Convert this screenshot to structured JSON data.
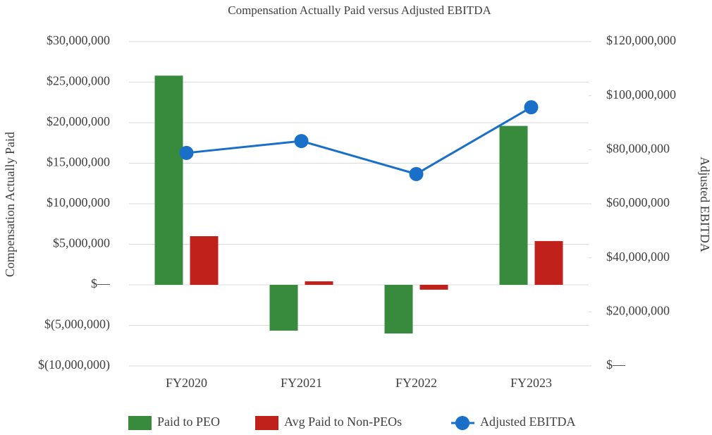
{
  "chart_data": {
    "type": "bar",
    "title": "Compensation Actually Paid versus Adjusted EBITDA",
    "ylabel": "Compensation Actually Paid",
    "y2label": "Adjusted EBITDA",
    "categories": [
      "FY2020",
      "FY2021",
      "FY2022",
      "FY2023"
    ],
    "series": [
      {
        "name": "Paid to PEO",
        "type": "bar",
        "color": "#388a3c",
        "values": [
          25800000,
          -5650000,
          -6000000,
          19600000
        ]
      },
      {
        "name": "Avg Paid to Non-PEOs",
        "type": "bar",
        "color": "#c0221b",
        "values": [
          6000000,
          430000,
          -600000,
          5400000
        ]
      },
      {
        "name": "Adjusted EBITDA",
        "type": "line",
        "axis": "y2",
        "color": "#1a6fc9",
        "values": [
          78800000,
          83200000,
          71000000,
          95700000
        ]
      }
    ],
    "ylim": [
      -10000000,
      30000000
    ],
    "yticks": [
      {
        "value": -10000000,
        "label": "$(10,000,000)"
      },
      {
        "value": -5000000,
        "label": "$(5,000,000)"
      },
      {
        "value": 0,
        "label": "$—"
      },
      {
        "value": 5000000,
        "label": "$5,000,000"
      },
      {
        "value": 10000000,
        "label": "$10,000,000"
      },
      {
        "value": 15000000,
        "label": "$15,000,000"
      },
      {
        "value": 20000000,
        "label": "$20,000,000"
      },
      {
        "value": 25000000,
        "label": "$25,000,000"
      },
      {
        "value": 30000000,
        "label": "$30,000,000"
      }
    ],
    "y2lim": [
      0,
      120000000
    ],
    "y2ticks": [
      {
        "value": 0,
        "label": "$—"
      },
      {
        "value": 20000000,
        "label": "$20,000,000"
      },
      {
        "value": 40000000,
        "label": "$40,000,000"
      },
      {
        "value": 60000000,
        "label": "$60,000,000"
      },
      {
        "value": 80000000,
        "label": "$80,000,000"
      },
      {
        "value": 100000000,
        "label": "$100,000,000"
      },
      {
        "value": 120000000,
        "label": "$120,000,000"
      }
    ],
    "grid": true,
    "legend": "bottom"
  }
}
